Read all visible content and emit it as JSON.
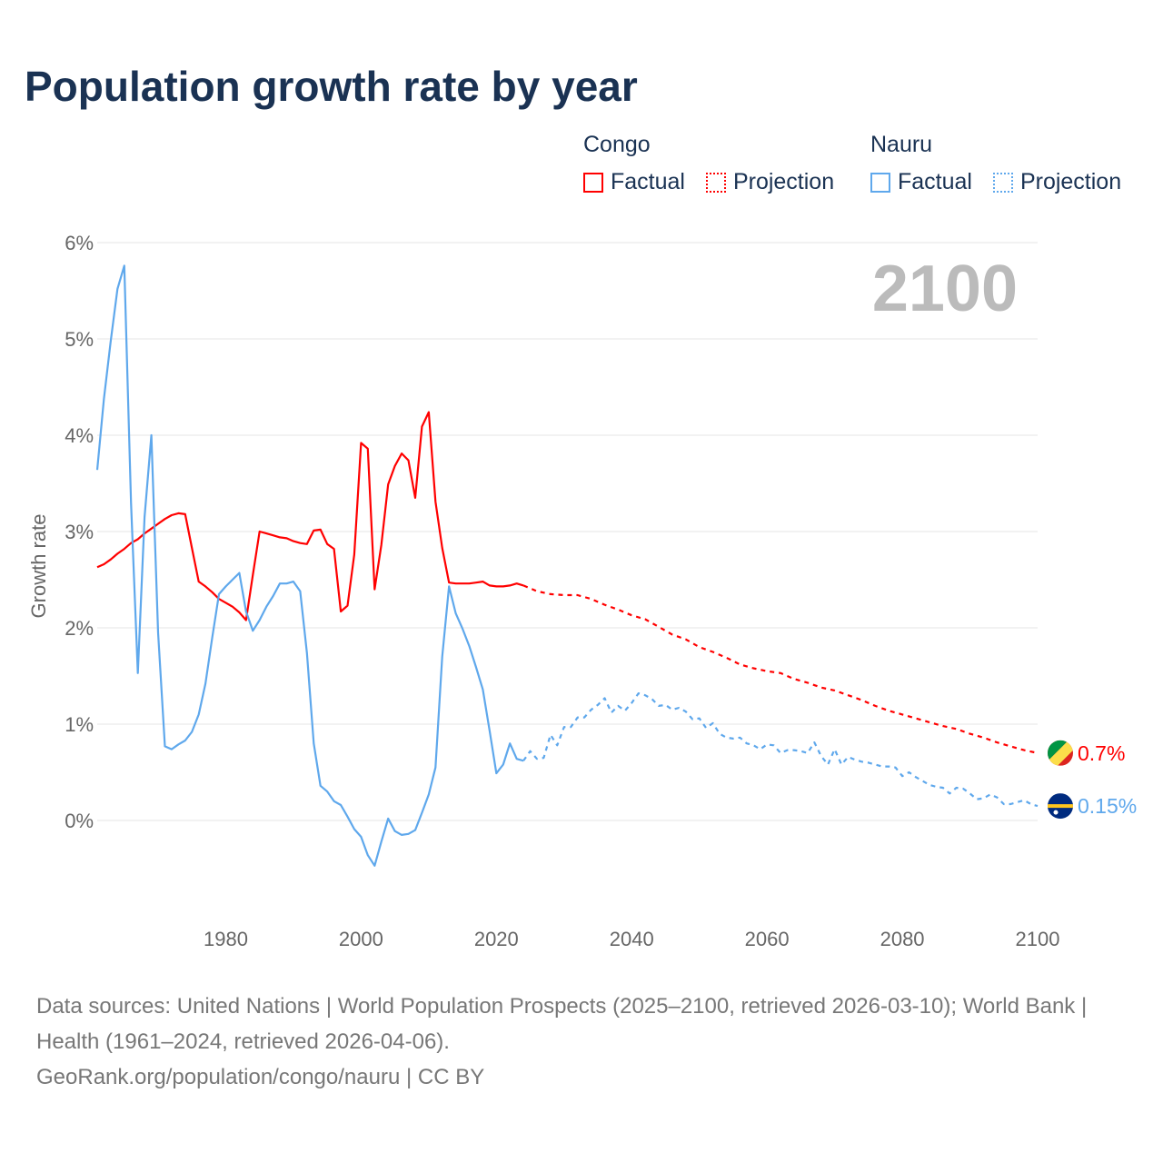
{
  "title": "Population growth rate by year",
  "legend": [
    {
      "country": "Congo",
      "factual": "Factual",
      "projection": "Projection",
      "color": "#ff0000"
    },
    {
      "country": "Nauru",
      "factual": "Factual",
      "projection": "Projection",
      "color": "#5fa8ec"
    }
  ],
  "year_label": "2100",
  "footer": {
    "sources": "Data sources: United Nations | World Population Prospects (2025–2100, retrieved 2026-03-10); World Bank | Health (1961–2024, retrieved 2026-04-06).",
    "credit": "GeoRank.org/population/congo/nauru | CC BY"
  },
  "chart_data": {
    "type": "line",
    "title": "Population growth rate by year",
    "xlabel": "",
    "ylabel": "Growth rate",
    "xlim": [
      1961,
      2100
    ],
    "ylim": [
      -1,
      6
    ],
    "x_ticks": [
      "1980",
      "2000",
      "2020",
      "2040",
      "2060",
      "2080",
      "2100"
    ],
    "y_ticks": [
      "0%",
      "1%",
      "2%",
      "3%",
      "4%",
      "5%",
      "6%"
    ],
    "grid": true,
    "series": [
      {
        "name": "Congo Factual",
        "color": "#ff0000",
        "dashed": false,
        "start": 1961,
        "step": 1,
        "values": [
          2.63,
          2.66,
          2.71,
          2.77,
          2.82,
          2.88,
          2.92,
          2.98,
          3.03,
          3.08,
          3.13,
          3.17,
          3.19,
          3.18,
          2.83,
          2.48,
          2.43,
          2.37,
          2.3,
          2.26,
          2.22,
          2.16,
          2.08,
          2.55,
          3.0,
          2.98,
          2.96,
          2.94,
          2.93,
          2.9,
          2.88,
          2.87,
          3.01,
          3.02,
          2.87,
          2.82,
          2.17,
          2.23,
          2.76,
          3.92,
          3.86,
          2.4,
          2.86,
          3.49,
          3.68,
          3.81,
          3.74,
          3.35,
          4.09,
          4.24,
          3.31,
          2.83,
          2.47,
          2.46,
          2.46,
          2.46,
          2.47,
          2.48,
          2.44,
          2.43,
          2.43,
          2.44,
          2.46,
          2.44
        ]
      },
      {
        "name": "Congo Projection",
        "color": "#ff0000",
        "dashed": true,
        "start": 2024,
        "step": 2,
        "values": [
          2.44,
          2.38,
          2.35,
          2.34,
          2.34,
          2.3,
          2.24,
          2.19,
          2.13,
          2.09,
          2.01,
          1.93,
          1.88,
          1.8,
          1.75,
          1.69,
          1.62,
          1.58,
          1.55,
          1.53,
          1.47,
          1.43,
          1.38,
          1.35,
          1.3,
          1.25,
          1.19,
          1.14,
          1.1,
          1.06,
          1.02,
          0.98,
          0.95,
          0.9,
          0.86,
          0.81,
          0.77,
          0.73,
          0.7
        ]
      },
      {
        "name": "Nauru Factual",
        "color": "#5fa8ec",
        "dashed": false,
        "start": 1961,
        "step": 1,
        "values": [
          3.64,
          4.38,
          4.98,
          5.52,
          5.76,
          3.3,
          1.53,
          3.15,
          4.0,
          1.95,
          0.77,
          0.74,
          0.79,
          0.83,
          0.92,
          1.1,
          1.42,
          1.9,
          2.35,
          2.43,
          2.5,
          2.57,
          2.17,
          1.97,
          2.08,
          2.22,
          2.33,
          2.46,
          2.46,
          2.48,
          2.38,
          1.74,
          0.8,
          0.36,
          0.3,
          0.2,
          0.16,
          0.04,
          -0.09,
          -0.17,
          -0.36,
          -0.47,
          -0.22,
          0.02,
          -0.11,
          -0.15,
          -0.14,
          -0.1,
          0.08,
          0.27,
          0.55,
          1.7,
          2.43,
          2.15,
          1.99,
          1.81,
          1.59,
          1.36,
          0.93,
          0.49,
          0.58,
          0.8,
          0.64,
          0.62
        ]
      },
      {
        "name": "Nauru Projection",
        "color": "#5fa8ec",
        "dashed": true,
        "start": 2024,
        "step": 1,
        "values": [
          0.62,
          0.72,
          0.64,
          0.65,
          0.89,
          0.78,
          0.97,
          0.97,
          1.07,
          1.07,
          1.15,
          1.2,
          1.27,
          1.12,
          1.19,
          1.14,
          1.22,
          1.32,
          1.3,
          1.26,
          1.19,
          1.2,
          1.15,
          1.17,
          1.13,
          1.05,
          1.06,
          0.96,
          1.01,
          0.9,
          0.86,
          0.85,
          0.86,
          0.8,
          0.78,
          0.74,
          0.79,
          0.78,
          0.7,
          0.73,
          0.73,
          0.72,
          0.7,
          0.81,
          0.67,
          0.58,
          0.74,
          0.58,
          0.66,
          0.63,
          0.61,
          0.6,
          0.58,
          0.56,
          0.56,
          0.55,
          0.46,
          0.5,
          0.45,
          0.41,
          0.37,
          0.35,
          0.34,
          0.28,
          0.34,
          0.33,
          0.28,
          0.22,
          0.23,
          0.27,
          0.24,
          0.17,
          0.17,
          0.19,
          0.21,
          0.17,
          0.15
        ]
      }
    ],
    "end_labels": [
      {
        "country": "Congo",
        "value": "0.7%",
        "color": "#ff0000"
      },
      {
        "country": "Nauru",
        "value": "0.15%",
        "color": "#5fa8ec"
      }
    ]
  }
}
